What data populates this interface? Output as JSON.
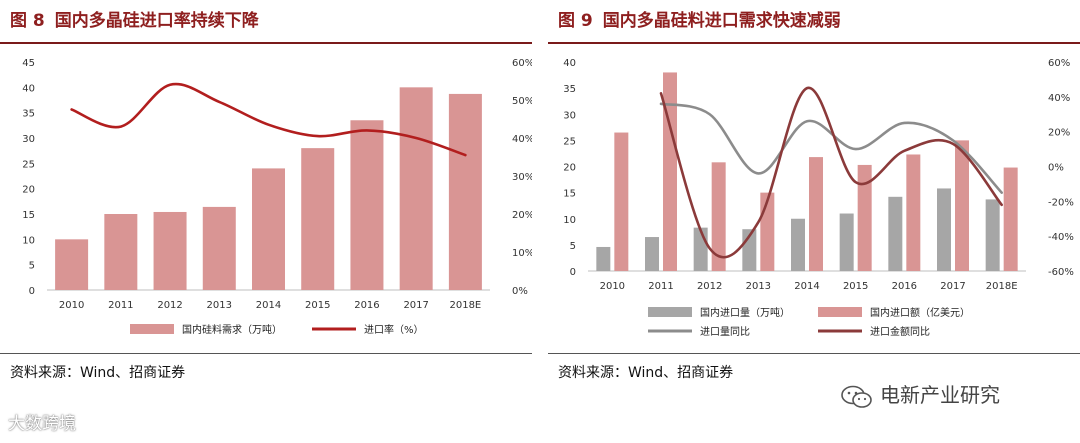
{
  "left_panel": {
    "figure_number": "图 8",
    "title": "国内多晶硅进口率持续下降",
    "source": "资料来源：Wind、招商证券"
  },
  "right_panel": {
    "figure_number": "图 9",
    "title": "国内多晶硅料进口需求快速减弱",
    "source": "资料来源：Wind、招商证券"
  },
  "watermarks": {
    "right": "电新产业研究",
    "left": "大数跨境"
  },
  "colors": {
    "title": "#8e1f1f",
    "bar_pink": "#d99594",
    "bar_gray": "#a6a6a6",
    "line_darkred": "#b21e1e",
    "line_gray": "#8c8c8c",
    "line_maroon": "#8b3a3a"
  },
  "chart_data": [
    {
      "type": "bar",
      "categories": [
        "2010",
        "2011",
        "2012",
        "2013",
        "2014",
        "2015",
        "2016",
        "2017",
        "2018E"
      ],
      "series": [
        {
          "name": "国内硅料需求（万吨）",
          "kind": "bar",
          "axis": "left",
          "values": [
            10,
            15,
            15.4,
            16.4,
            24,
            28,
            33.5,
            40,
            38.7
          ]
        },
        {
          "name": "进口率（%）",
          "kind": "line",
          "axis": "right",
          "values": [
            47.5,
            43,
            54,
            49.5,
            43.5,
            40.5,
            42,
            40,
            35.5
          ]
        }
      ],
      "y_left": {
        "min": 0,
        "max": 45,
        "step": 5,
        "ticks": [
          "0",
          "5",
          "10",
          "15",
          "20",
          "25",
          "30",
          "35",
          "40",
          "45"
        ]
      },
      "y_right": {
        "min": 0,
        "max": 60,
        "step": 10,
        "ticks": [
          "0%",
          "10%",
          "20%",
          "30%",
          "40%",
          "50%",
          "60%"
        ]
      },
      "legend_position": "bottom",
      "grid": false
    },
    {
      "type": "bar",
      "categories": [
        "2010",
        "2011",
        "2012",
        "2013",
        "2014",
        "2015",
        "2016",
        "2017",
        "2018E"
      ],
      "series": [
        {
          "name": "国内进口量（万吨）",
          "kind": "bar",
          "axis": "left",
          "values": [
            4.6,
            6.5,
            8.3,
            8.0,
            10.0,
            11.0,
            14.2,
            15.8,
            13.7
          ]
        },
        {
          "name": "国内进口额（亿美元）",
          "kind": "bar",
          "axis": "left",
          "values": [
            26.5,
            38.0,
            20.8,
            15.0,
            21.8,
            20.3,
            22.3,
            25.0,
            19.8
          ]
        },
        {
          "name": "进口量同比",
          "kind": "line",
          "axis": "right",
          "values": [
            null,
            36,
            30,
            -4,
            26,
            10,
            25,
            15,
            -15
          ]
        },
        {
          "name": "进口金额同比",
          "kind": "line",
          "axis": "right",
          "values": [
            null,
            42,
            -47,
            -32,
            45,
            -9,
            9,
            13,
            -22
          ]
        }
      ],
      "y_left": {
        "min": 0,
        "max": 40,
        "step": 5,
        "ticks": [
          "0",
          "5",
          "10",
          "15",
          "20",
          "25",
          "30",
          "35",
          "40"
        ]
      },
      "y_right": {
        "min": -60,
        "max": 60,
        "step": 20,
        "ticks": [
          "-60%",
          "-40%",
          "-20%",
          "0%",
          "20%",
          "40%",
          "60%"
        ]
      },
      "legend_position": "bottom",
      "grid": false
    }
  ]
}
